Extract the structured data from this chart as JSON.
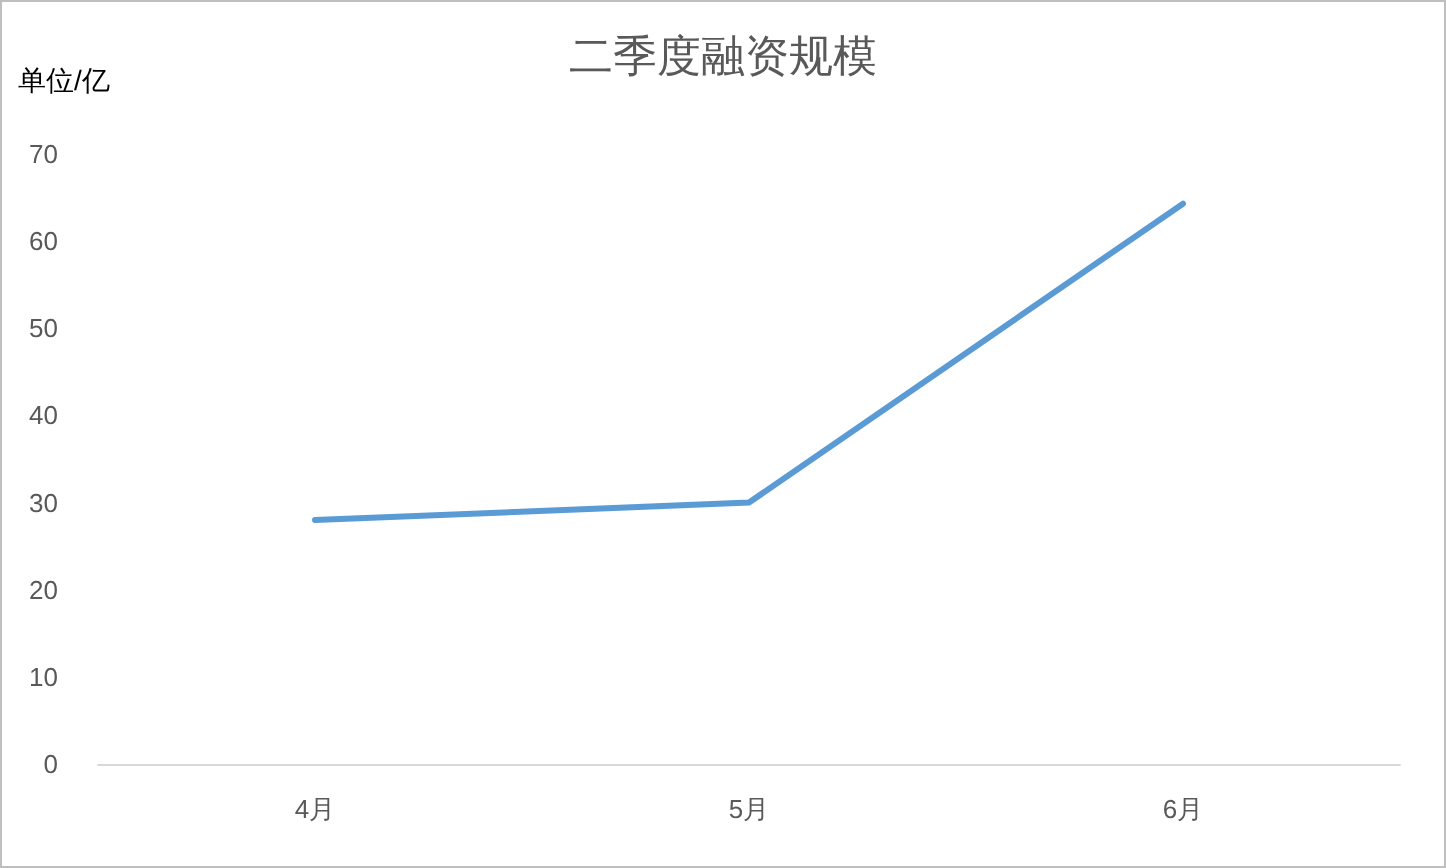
{
  "chart_data": {
    "type": "line",
    "title": "二季度融资规模",
    "ylabel": "单位/亿",
    "categories": [
      "4月",
      "5月",
      "6月"
    ],
    "series": [
      {
        "color": "#5b9bd5",
        "values": [
          28,
          30,
          64.3
        ]
      }
    ],
    "ylim": [
      0,
      70
    ],
    "yticks": [
      0,
      10,
      20,
      30,
      40,
      50,
      60,
      70
    ],
    "grid": false,
    "marker": "none",
    "line_style": "solid"
  }
}
